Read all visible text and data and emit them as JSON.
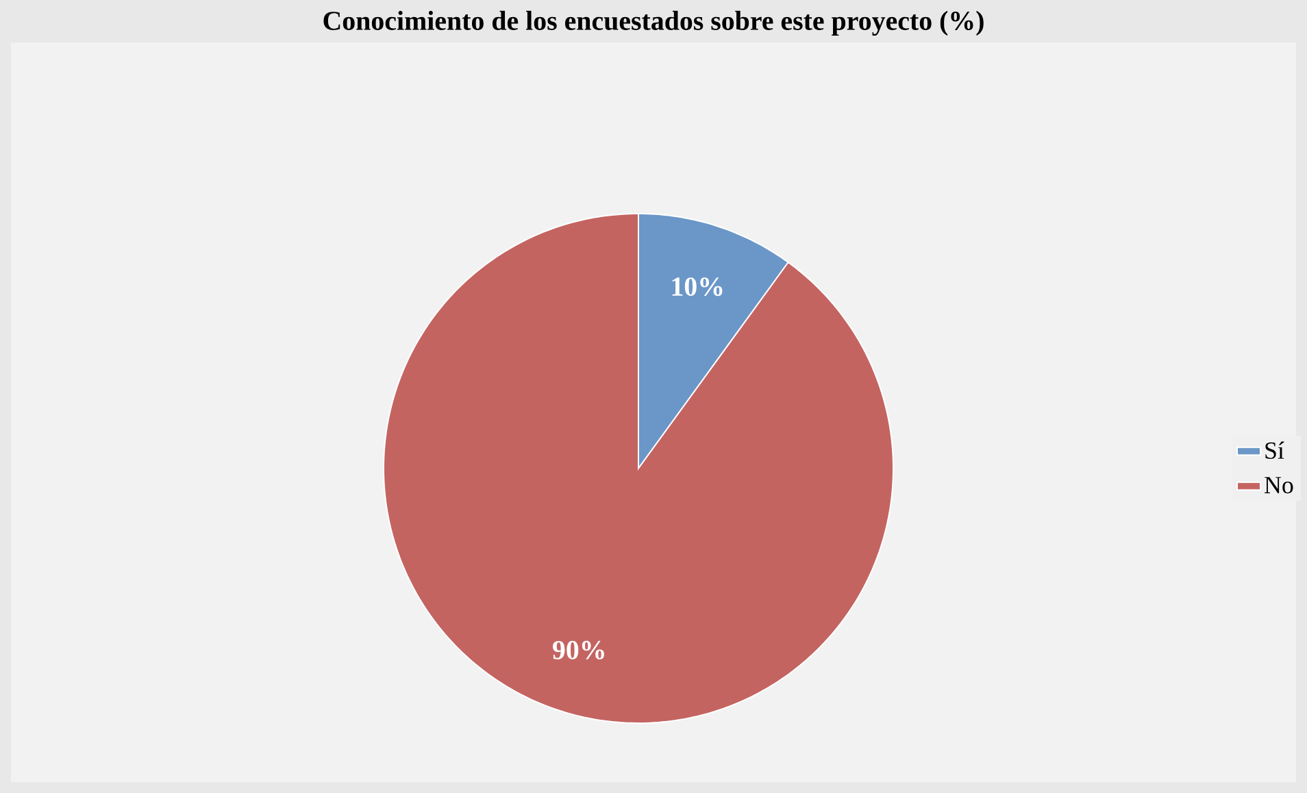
{
  "chart_data": {
    "type": "pie",
    "title": "Conocimiento de los encuestados sobre este proyecto (%)",
    "categories": [
      "Sí",
      "No"
    ],
    "values": [
      10,
      90
    ],
    "colors": [
      "#6b96c8",
      "#c46461"
    ],
    "value_labels": [
      "10%",
      "90%"
    ],
    "legend": "right"
  }
}
